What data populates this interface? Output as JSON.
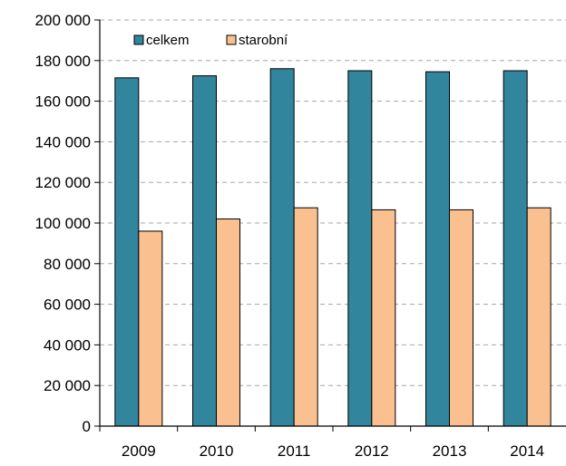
{
  "chart_data": {
    "type": "bar",
    "categories": [
      "2009",
      "2010",
      "2011",
      "2012",
      "2013",
      "2014"
    ],
    "series": [
      {
        "name": "celkem",
        "color": "#31859C",
        "values": [
          171500,
          172500,
          176000,
          175000,
          174500,
          175000
        ]
      },
      {
        "name": "starobní",
        "color": "#FAC090",
        "values": [
          96000,
          102000,
          107500,
          106500,
          106500,
          107500
        ]
      }
    ],
    "ylim": [
      0,
      200000
    ],
    "yticks": [
      0,
      20000,
      40000,
      60000,
      80000,
      100000,
      120000,
      140000,
      160000,
      180000,
      200000
    ],
    "ytick_labels": [
      "0",
      "20 000",
      "40 000",
      "60 000",
      "80 000",
      "100 000",
      "120 000",
      "140 000",
      "160 000",
      "180 000",
      "200 000"
    ],
    "grid": true,
    "legend_position": "top-left"
  }
}
